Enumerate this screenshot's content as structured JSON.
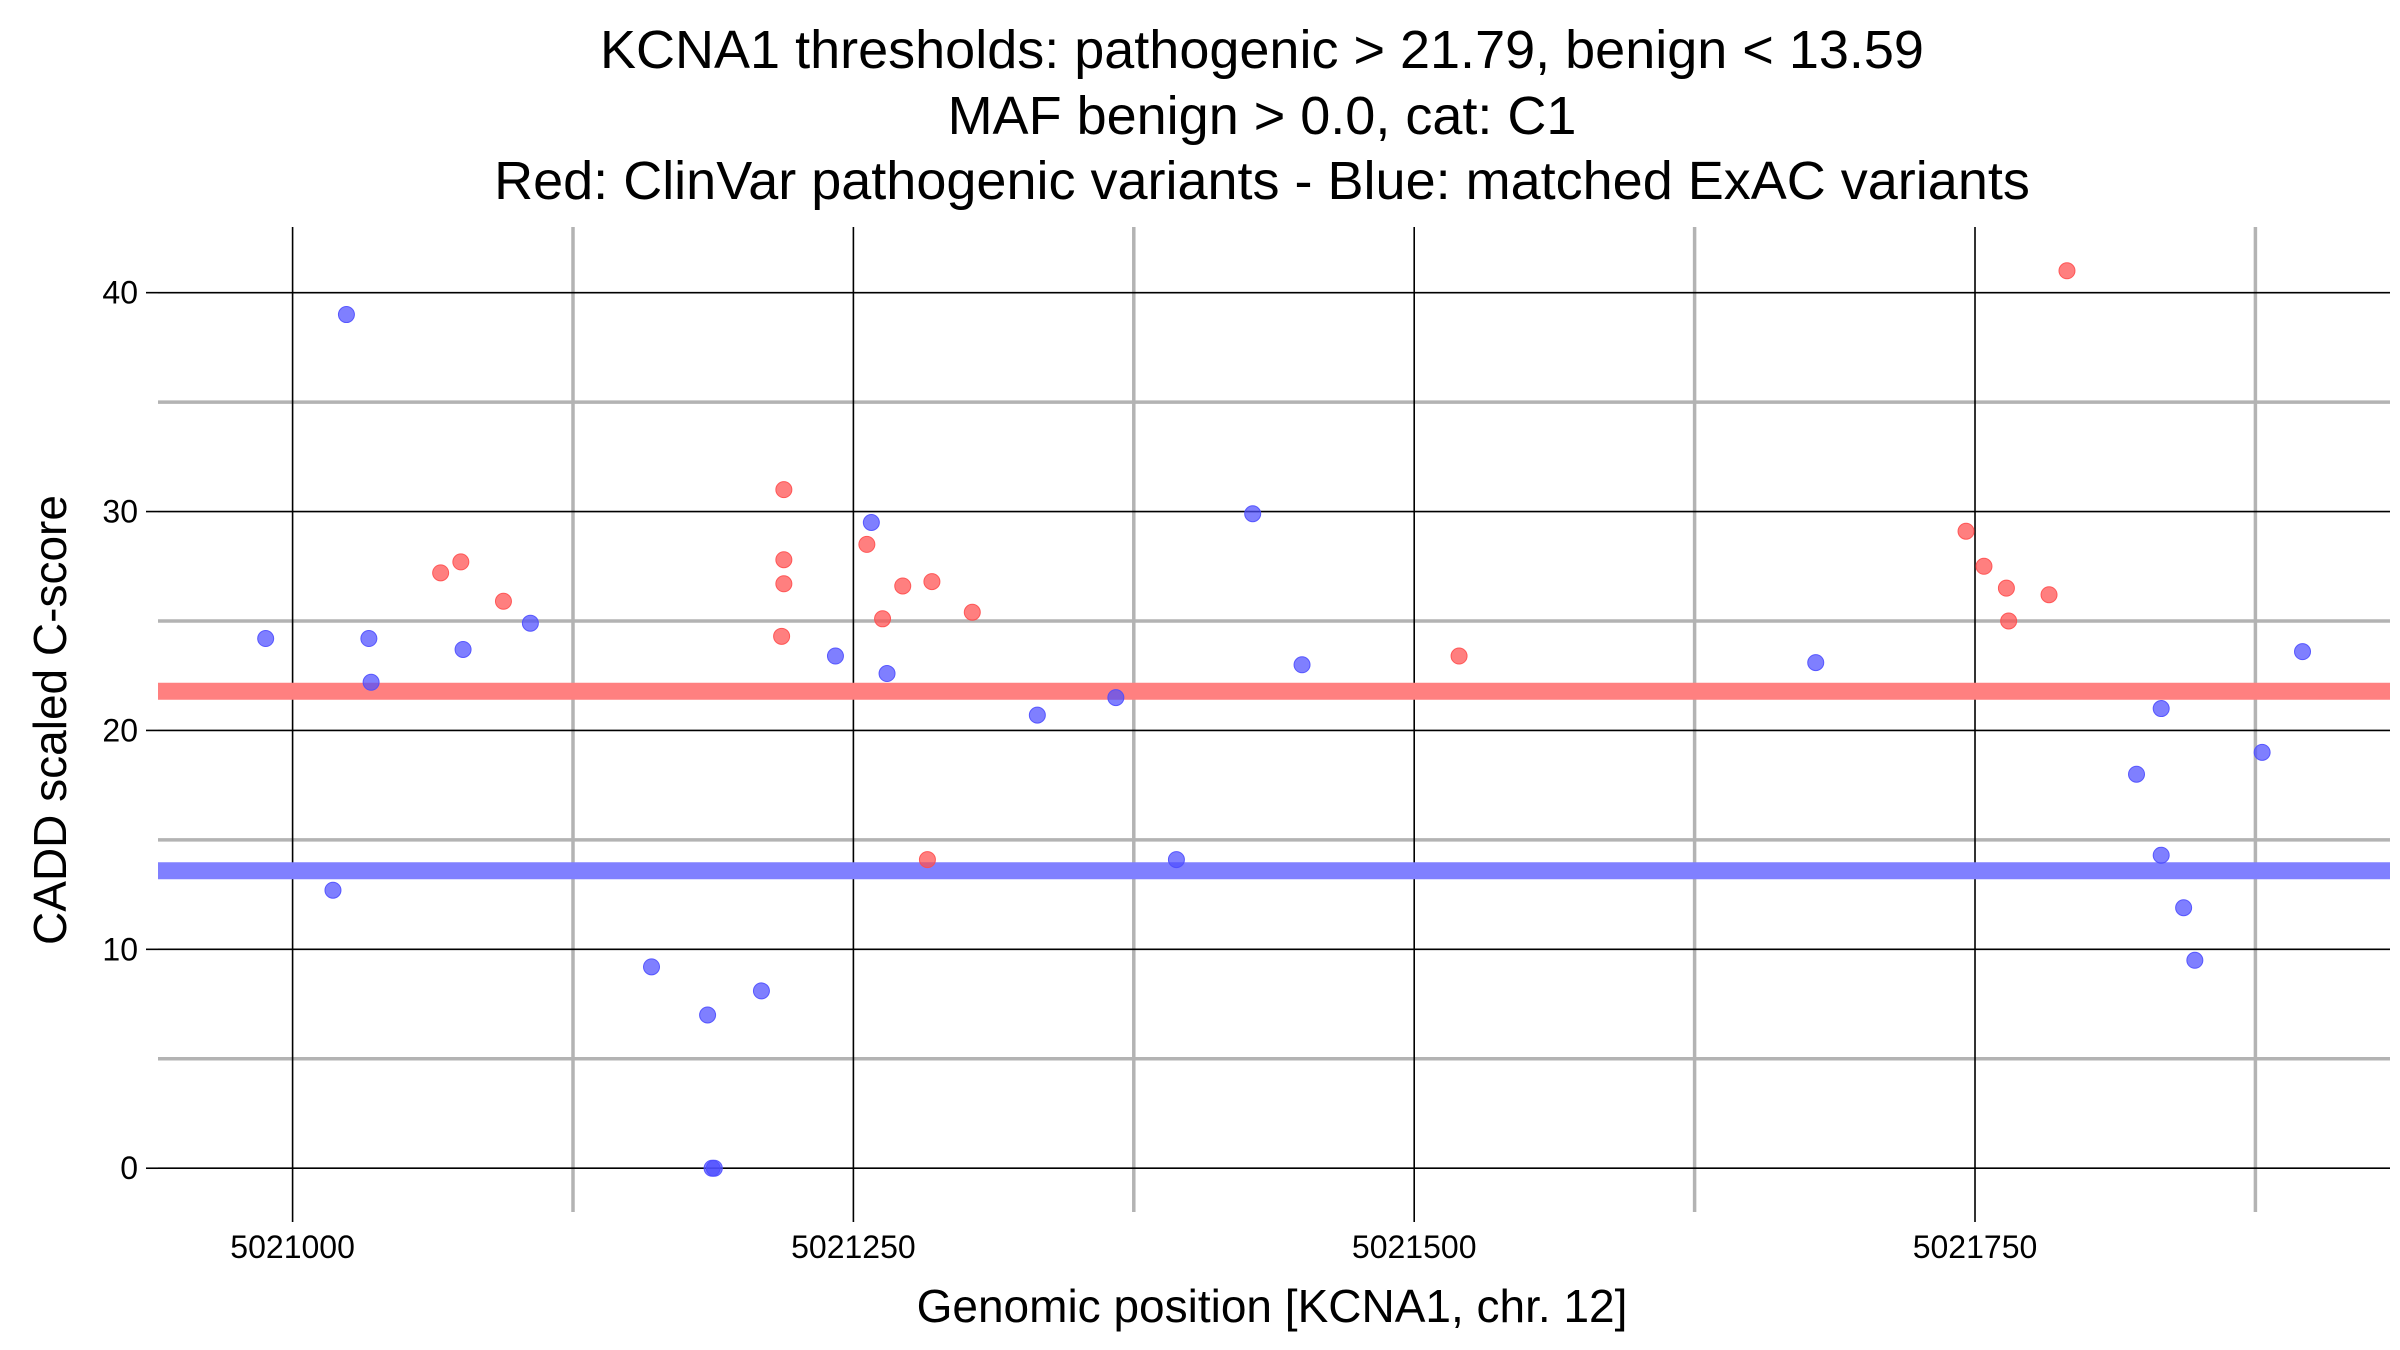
{
  "chart_data": {
    "type": "scatter",
    "title_lines": [
      "KCNA1 thresholds: pathogenic > 21.79, benign < 13.59",
      "MAF benign > 0.0, cat: C1",
      "Red: ClinVar pathogenic variants - Blue: matched ExAC variants"
    ],
    "xlabel": "Genomic position [KCNA1, chr. 12]",
    "ylabel": "CADD scaled C-score",
    "xlim": [
      5020940,
      5021935
    ],
    "ylim": [
      -2,
      43
    ],
    "x_ticks": [
      5021000,
      5021250,
      5021500,
      5021750
    ],
    "x_tick_labels": [
      "5021000",
      "5021250",
      "5021500",
      "5021750"
    ],
    "x_minor_ticks": [
      5021125,
      5021375,
      5021625,
      5021875
    ],
    "y_ticks": [
      0,
      10,
      20,
      30,
      40
    ],
    "y_tick_labels": [
      "0",
      "10",
      "20",
      "30",
      "40"
    ],
    "y_minor_ticks": [
      5,
      15,
      25,
      35
    ],
    "grid": true,
    "thresholds": [
      {
        "value": 21.79,
        "color": "#ff8080"
      },
      {
        "value": 13.59,
        "color": "#8080ff"
      }
    ],
    "series": [
      {
        "color": "#ff4d4d",
        "points": [
          {
            "x": 5021066,
            "y": 27.2
          },
          {
            "x": 5021075,
            "y": 27.7
          },
          {
            "x": 5021094,
            "y": 25.9
          },
          {
            "x": 5021219,
            "y": 31.0
          },
          {
            "x": 5021219,
            "y": 27.8
          },
          {
            "x": 5021219,
            "y": 26.7
          },
          {
            "x": 5021218,
            "y": 24.3
          },
          {
            "x": 5021256,
            "y": 28.5
          },
          {
            "x": 5021272,
            "y": 26.6
          },
          {
            "x": 5021263,
            "y": 25.1
          },
          {
            "x": 5021285,
            "y": 26.8
          },
          {
            "x": 5021303,
            "y": 25.4
          },
          {
            "x": 5021283,
            "y": 14.1
          },
          {
            "x": 5021520,
            "y": 23.4
          },
          {
            "x": 5021746,
            "y": 29.1
          },
          {
            "x": 5021754,
            "y": 27.5
          },
          {
            "x": 5021764,
            "y": 26.5
          },
          {
            "x": 5021765,
            "y": 25.0
          },
          {
            "x": 5021783,
            "y": 26.2
          },
          {
            "x": 5021791,
            "y": 41.0
          }
        ]
      },
      {
        "color": "#4d4dff",
        "points": [
          {
            "x": 5020988,
            "y": 24.2
          },
          {
            "x": 5021024,
            "y": 39.0
          },
          {
            "x": 5021034,
            "y": 24.2
          },
          {
            "x": 5021035,
            "y": 22.2
          },
          {
            "x": 5021076,
            "y": 23.7
          },
          {
            "x": 5021106,
            "y": 24.9
          },
          {
            "x": 5021018,
            "y": 12.7
          },
          {
            "x": 5021160,
            "y": 9.2
          },
          {
            "x": 5021185,
            "y": 7.0
          },
          {
            "x": 5021187,
            "y": 0.0
          },
          {
            "x": 5021188,
            "y": 0.0
          },
          {
            "x": 5021209,
            "y": 8.1
          },
          {
            "x": 5021242,
            "y": 23.4
          },
          {
            "x": 5021258,
            "y": 29.5
          },
          {
            "x": 5021265,
            "y": 22.6
          },
          {
            "x": 5021332,
            "y": 20.7
          },
          {
            "x": 5021367,
            "y": 21.5
          },
          {
            "x": 5021394,
            "y": 14.1
          },
          {
            "x": 5021428,
            "y": 29.9
          },
          {
            "x": 5021450,
            "y": 23.0
          },
          {
            "x": 5021679,
            "y": 23.1
          },
          {
            "x": 5021822,
            "y": 18.0
          },
          {
            "x": 5021833,
            "y": 21.0
          },
          {
            "x": 5021833,
            "y": 14.3
          },
          {
            "x": 5021843,
            "y": 11.9
          },
          {
            "x": 5021848,
            "y": 9.5
          },
          {
            "x": 5021878,
            "y": 19.0
          },
          {
            "x": 5021896,
            "y": 23.6
          }
        ]
      }
    ]
  }
}
